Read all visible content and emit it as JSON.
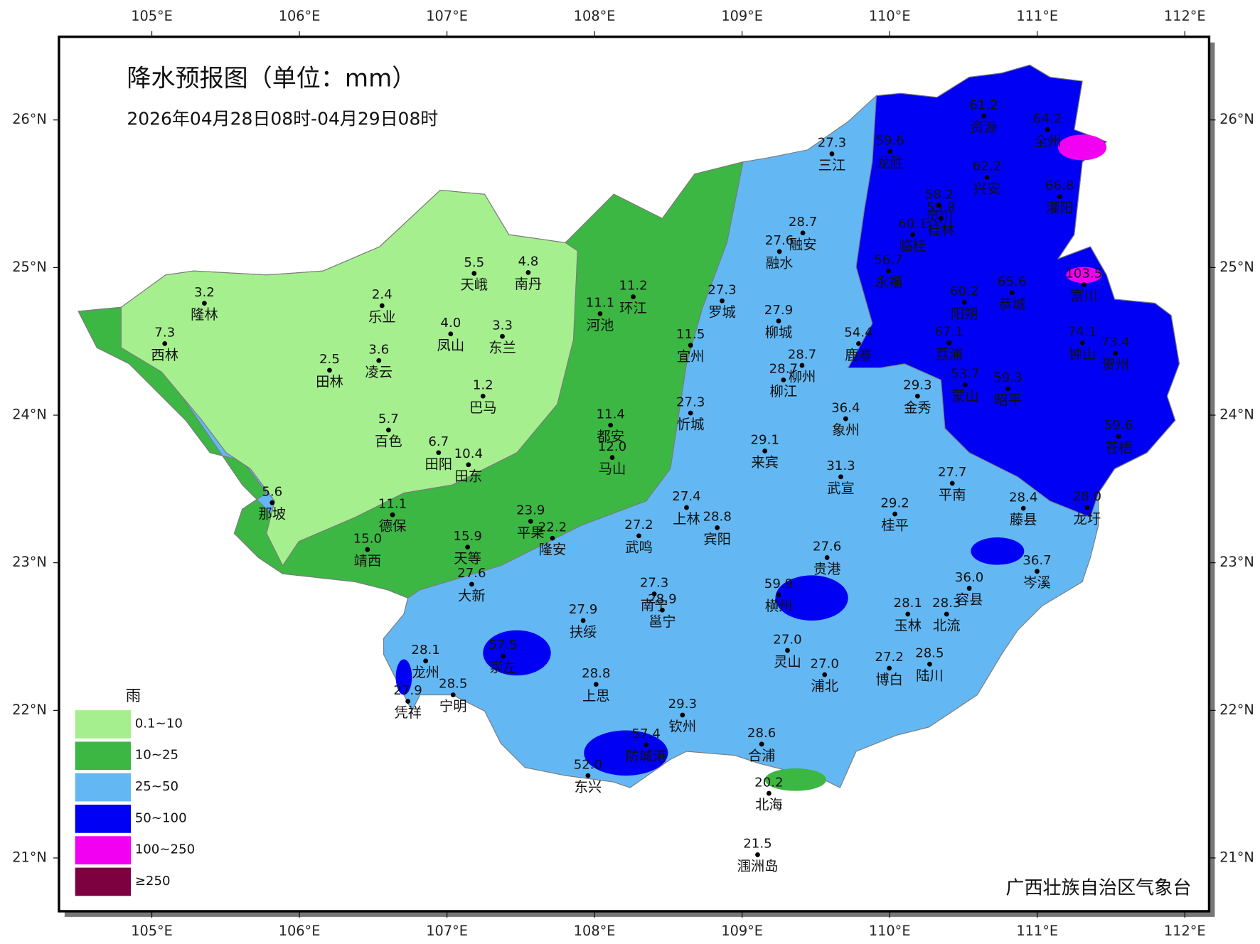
{
  "header": {
    "title": "降水预报图（单位：mm）",
    "subtitle": "2026年04月28日08时-04月29日08时"
  },
  "map": {
    "lon_ticks": [
      {
        "value": 105,
        "label": "105°E"
      },
      {
        "value": 106,
        "label": "106°E"
      },
      {
        "value": 107,
        "label": "107°E"
      },
      {
        "value": 108,
        "label": "108°E"
      },
      {
        "value": 109,
        "label": "109°E"
      },
      {
        "value": 110,
        "label": "110°E"
      },
      {
        "value": 111,
        "label": "111°E"
      },
      {
        "value": 112,
        "label": "112°E"
      }
    ],
    "lat_ticks": [
      {
        "value": 21,
        "label": "21°N"
      },
      {
        "value": 22,
        "label": "22°N"
      },
      {
        "value": 23,
        "label": "23°N"
      },
      {
        "value": 24,
        "label": "24°N"
      },
      {
        "value": 25,
        "label": "25°N"
      },
      {
        "value": 26,
        "label": "26°N"
      }
    ]
  },
  "stations": {
    "names": [
      "隆林",
      "西林",
      "乐业",
      "天峨",
      "南丹",
      "凤山",
      "东兰",
      "田林",
      "凌云",
      "巴马",
      "百色",
      "田阳",
      "田东",
      "那坡",
      "德保",
      "靖西",
      "天等",
      "平果",
      "隆安",
      "大新",
      "河池",
      "环江",
      "宜州",
      "都安",
      "马山",
      "忻城",
      "罗城",
      "融安",
      "融水",
      "三江",
      "柳城",
      "柳州",
      "柳江",
      "象州",
      "来宾",
      "武宣",
      "金秀",
      "上林",
      "宾阳",
      "武鸣",
      "贵港",
      "桂平",
      "平南",
      "藤县",
      "龙圩",
      "岑溪",
      "容县",
      "北流",
      "玉林",
      "陆川",
      "博白",
      "横州",
      "南宁",
      "邕宁",
      "扶绥",
      "崇左",
      "龙州",
      "凭祥",
      "宁明",
      "上思",
      "灵山",
      "浦北",
      "钦州",
      "防城港",
      "东兴",
      "合浦",
      "北海",
      "涠洲岛",
      "龙胜",
      "资源",
      "全州",
      "兴安",
      "灌阳",
      "灵川",
      "桂林",
      "临桂",
      "永福",
      "恭城",
      "阳朔",
      "荔浦",
      "富川",
      "钟山",
      "贺州",
      "鹿寨",
      "蒙山",
      "昭平",
      "苍梧"
    ],
    "values": [
      3.2,
      7.3,
      2.4,
      5.5,
      4.8,
      4.0,
      3.3,
      2.5,
      3.6,
      1.2,
      5.7,
      6.7,
      10.4,
      5.6,
      11.1,
      15.0,
      15.9,
      23.9,
      22.2,
      27.6,
      11.1,
      11.2,
      11.5,
      11.4,
      12.0,
      27.3,
      27.3,
      28.7,
      27.6,
      27.3,
      27.9,
      28.7,
      28.7,
      36.4,
      29.1,
      31.3,
      29.3,
      27.4,
      28.8,
      27.2,
      27.6,
      29.2,
      27.7,
      28.4,
      28.0,
      36.7,
      36.0,
      28.3,
      28.1,
      28.5,
      27.2,
      59.9,
      27.3,
      28.9,
      27.9,
      57.5,
      28.1,
      27.9,
      28.5,
      28.8,
      27.0,
      27.0,
      29.3,
      57.4,
      52.0,
      28.6,
      20.2,
      21.5,
      59.6,
      61.2,
      64.2,
      62.2,
      66.8,
      58.2,
      59.8,
      60.1,
      56.7,
      65.6,
      60.2,
      67.1,
      103.5,
      74.1,
      73.4,
      54.4,
      53.7,
      59.3,
      59.6
    ],
    "value_labels": [
      "3.2",
      "7.3",
      "2.4",
      "5.5",
      "4.8",
      "4.0",
      "3.3",
      "2.5",
      "3.6",
      "1.2",
      "5.7",
      "6.7",
      "10.4",
      "5.6",
      "11.1",
      "15.0",
      "15.9",
      "23.9",
      "22.2",
      "27.6",
      "11.1",
      "11.2",
      "11.5",
      "11.4",
      "12.0",
      "27.3",
      "27.3",
      "28.7",
      "27.6",
      "27.3",
      "27.9",
      "28.7",
      "28.7",
      "36.4",
      "29.1",
      "31.3",
      "29.3",
      "27.4",
      "28.8",
      "27.2",
      "27.6",
      "29.2",
      "27.7",
      "28.4",
      "28.0",
      "36.7",
      "36.0",
      "28.3",
      "28.1",
      "28.5",
      "27.2",
      "59.9",
      "27.3",
      "28.9",
      "27.9",
      "57.5",
      "28.1",
      "27.9",
      "28.5",
      "28.8",
      "27.0",
      "27.0",
      "29.3",
      "57.4",
      "52.0",
      "28.6",
      "20.2",
      "21.5",
      "59.6",
      "61.2",
      "64.2",
      "62.2",
      "66.8",
      "58.2",
      "59.8",
      "60.1",
      "56.7",
      "65.6",
      "60.2",
      "67.1",
      "103.5",
      "74.1",
      "73.4",
      "54.4",
      "53.7",
      "59.3",
      "59.6"
    ]
  },
  "legend": {
    "title": "雨",
    "items": [
      {
        "label": "0.1~10",
        "color": "#a6ef8f"
      },
      {
        "label": "10~25",
        "color": "#3cb743"
      },
      {
        "label": "25~50",
        "color": "#63b8f4"
      },
      {
        "label": "50~100",
        "color": "#0000f4"
      },
      {
        "label": "100~250",
        "color": "#f200f2"
      },
      {
        "label": "≥250",
        "color": "#7d0040"
      }
    ]
  },
  "footer": {
    "credit": "广西壮族自治区气象台"
  }
}
